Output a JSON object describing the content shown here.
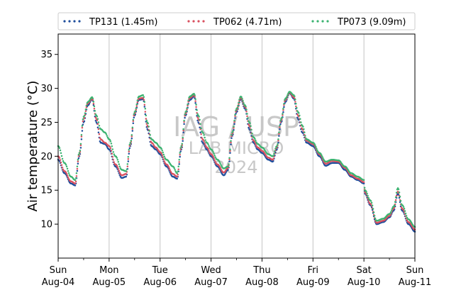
{
  "chart_data": {
    "type": "scatter",
    "ylabel": "Air temperature (°C)",
    "xlabel": "",
    "ylim": [
      5,
      38
    ],
    "y_ticks": [
      10,
      15,
      20,
      25,
      30,
      35
    ],
    "x_range": [
      "2024-08-04T00:00",
      "2024-08-11T00:00"
    ],
    "x_ticks": [
      {
        "date": "2024-08-04",
        "day": "Sun",
        "label": "Aug-04"
      },
      {
        "date": "2024-08-05",
        "day": "Mon",
        "label": "Aug-05"
      },
      {
        "date": "2024-08-06",
        "day": "Tue",
        "label": "Aug-06"
      },
      {
        "date": "2024-08-07",
        "day": "Wed",
        "label": "Aug-07"
      },
      {
        "date": "2024-08-08",
        "day": "Thu",
        "label": "Aug-08"
      },
      {
        "date": "2024-08-09",
        "day": "Fri",
        "label": "Aug-09"
      },
      {
        "date": "2024-08-10",
        "day": "Sat",
        "label": "Aug-10"
      },
      {
        "date": "2024-08-11",
        "day": "Sun",
        "label": "Aug-11"
      }
    ],
    "grid": "vertical-major",
    "legend_position": "top",
    "watermark": [
      "IAG / USP",
      "LAB MICRO",
      "2024"
    ],
    "series": [
      {
        "name": "TP131 (1.45m)",
        "color": "#1f4e9c",
        "points": [
          [
            "2024-08-04T00:00",
            19.5
          ],
          [
            "2024-08-04T03:00",
            17.5
          ],
          [
            "2024-08-04T06:00",
            16.0
          ],
          [
            "2024-08-04T08:00",
            15.7
          ],
          [
            "2024-08-04T10:00",
            20.0
          ],
          [
            "2024-08-04T12:00",
            25.0
          ],
          [
            "2024-08-04T14:00",
            27.5
          ],
          [
            "2024-08-04T16:00",
            28.4
          ],
          [
            "2024-08-04T18:00",
            25.0
          ],
          [
            "2024-08-04T20:00",
            22.0
          ],
          [
            "2024-08-04T22:00",
            21.8
          ],
          [
            "2024-08-05T00:00",
            21.0
          ],
          [
            "2024-08-05T03:00",
            18.5
          ],
          [
            "2024-08-05T06:00",
            16.8
          ],
          [
            "2024-08-05T08:00",
            17.0
          ],
          [
            "2024-08-05T10:00",
            21.5
          ],
          [
            "2024-08-05T12:00",
            26.0
          ],
          [
            "2024-08-05T14:00",
            28.3
          ],
          [
            "2024-08-05T16:00",
            28.4
          ],
          [
            "2024-08-05T18:00",
            24.0
          ],
          [
            "2024-08-05T20:00",
            21.5
          ],
          [
            "2024-08-05T22:00",
            21.0
          ],
          [
            "2024-08-06T00:00",
            20.3
          ],
          [
            "2024-08-06T03:00",
            18.5
          ],
          [
            "2024-08-06T06:00",
            17.0
          ],
          [
            "2024-08-06T08:00",
            16.7
          ],
          [
            "2024-08-06T10:00",
            21.0
          ],
          [
            "2024-08-06T12:00",
            26.0
          ],
          [
            "2024-08-06T14:00",
            28.3
          ],
          [
            "2024-08-06T16:00",
            28.8
          ],
          [
            "2024-08-06T18:00",
            25.0
          ],
          [
            "2024-08-06T20:00",
            22.0
          ],
          [
            "2024-08-06T22:00",
            21.0
          ],
          [
            "2024-08-07T00:00",
            20.0
          ],
          [
            "2024-08-07T03:00",
            18.5
          ],
          [
            "2024-08-07T06:00",
            17.2
          ],
          [
            "2024-08-07T08:00",
            18.0
          ],
          [
            "2024-08-07T10:00",
            23.0
          ],
          [
            "2024-08-07T12:00",
            26.5
          ],
          [
            "2024-08-07T14:00",
            28.4
          ],
          [
            "2024-08-07T16:00",
            27.0
          ],
          [
            "2024-08-07T18:00",
            24.0
          ],
          [
            "2024-08-07T20:00",
            22.0
          ],
          [
            "2024-08-07T22:00",
            21.0
          ],
          [
            "2024-08-08T00:00",
            20.5
          ],
          [
            "2024-08-08T03:00",
            19.5
          ],
          [
            "2024-08-08T05:00",
            19.2
          ],
          [
            "2024-08-08T07:00",
            21.0
          ],
          [
            "2024-08-08T09:00",
            25.0
          ],
          [
            "2024-08-08T11:00",
            28.0
          ],
          [
            "2024-08-08T13:00",
            29.3
          ],
          [
            "2024-08-08T15:00",
            28.5
          ],
          [
            "2024-08-08T17:00",
            25.5
          ],
          [
            "2024-08-08T19:00",
            23.5
          ],
          [
            "2024-08-08T21:00",
            22.0
          ],
          [
            "2024-08-09T00:00",
            21.5
          ],
          [
            "2024-08-09T03:00",
            20.0
          ],
          [
            "2024-08-09T06:00",
            18.6
          ],
          [
            "2024-08-09T09:00",
            19.0
          ],
          [
            "2024-08-09T12:00",
            19.0
          ],
          [
            "2024-08-09T15:00",
            18.0
          ],
          [
            "2024-08-09T18:00",
            17.0
          ],
          [
            "2024-08-09T21:00",
            16.5
          ],
          [
            "2024-08-10T00:00",
            16.0
          ],
          [
            "2024-08-10T00:30",
            14.5
          ],
          [
            "2024-08-10T03:00",
            12.8
          ],
          [
            "2024-08-10T06:00",
            10.0
          ],
          [
            "2024-08-10T09:00",
            10.3
          ],
          [
            "2024-08-10T12:00",
            11.0
          ],
          [
            "2024-08-10T14:00",
            12.0
          ],
          [
            "2024-08-10T16:00",
            14.5
          ],
          [
            "2024-08-10T18:00",
            12.0
          ],
          [
            "2024-08-10T21:00",
            10.0
          ],
          [
            "2024-08-11T00:00",
            8.9
          ]
        ]
      },
      {
        "name": "TP062 (4.71m)",
        "color": "#d9505f",
        "points": [
          [
            "2024-08-04T00:00",
            20.0
          ],
          [
            "2024-08-04T03:00",
            17.8
          ],
          [
            "2024-08-04T06:00",
            16.3
          ],
          [
            "2024-08-04T08:00",
            16.0
          ],
          [
            "2024-08-04T10:00",
            20.3
          ],
          [
            "2024-08-04T12:00",
            25.5
          ],
          [
            "2024-08-04T14:00",
            27.8
          ],
          [
            "2024-08-04T16:00",
            28.5
          ],
          [
            "2024-08-04T18:00",
            25.5
          ],
          [
            "2024-08-04T20:00",
            22.5
          ],
          [
            "2024-08-04T22:00",
            22.0
          ],
          [
            "2024-08-05T00:00",
            21.5
          ],
          [
            "2024-08-05T03:00",
            18.8
          ],
          [
            "2024-08-05T06:00",
            17.2
          ],
          [
            "2024-08-05T08:00",
            17.4
          ],
          [
            "2024-08-05T10:00",
            21.8
          ],
          [
            "2024-08-05T12:00",
            26.3
          ],
          [
            "2024-08-05T14:00",
            28.5
          ],
          [
            "2024-08-05T16:00",
            28.6
          ],
          [
            "2024-08-05T18:00",
            24.5
          ],
          [
            "2024-08-05T20:00",
            22.0
          ],
          [
            "2024-08-05T22:00",
            21.3
          ],
          [
            "2024-08-06T00:00",
            20.6
          ],
          [
            "2024-08-06T03:00",
            18.8
          ],
          [
            "2024-08-06T06:00",
            17.4
          ],
          [
            "2024-08-06T08:00",
            17.0
          ],
          [
            "2024-08-06T10:00",
            21.3
          ],
          [
            "2024-08-06T12:00",
            26.3
          ],
          [
            "2024-08-06T14:00",
            28.6
          ],
          [
            "2024-08-06T16:00",
            29.0
          ],
          [
            "2024-08-06T18:00",
            25.5
          ],
          [
            "2024-08-06T20:00",
            22.5
          ],
          [
            "2024-08-06T22:00",
            21.3
          ],
          [
            "2024-08-07T00:00",
            20.3
          ],
          [
            "2024-08-07T03:00",
            18.8
          ],
          [
            "2024-08-07T06:00",
            17.6
          ],
          [
            "2024-08-07T08:00",
            18.3
          ],
          [
            "2024-08-07T10:00",
            23.3
          ],
          [
            "2024-08-07T12:00",
            26.8
          ],
          [
            "2024-08-07T14:00",
            28.6
          ],
          [
            "2024-08-07T16:00",
            27.3
          ],
          [
            "2024-08-07T18:00",
            24.5
          ],
          [
            "2024-08-07T20:00",
            22.3
          ],
          [
            "2024-08-07T22:00",
            21.3
          ],
          [
            "2024-08-08T00:00",
            20.8
          ],
          [
            "2024-08-08T03:00",
            19.8
          ],
          [
            "2024-08-08T05:00",
            19.5
          ],
          [
            "2024-08-08T07:00",
            21.3
          ],
          [
            "2024-08-08T09:00",
            25.3
          ],
          [
            "2024-08-08T11:00",
            28.3
          ],
          [
            "2024-08-08T13:00",
            29.4
          ],
          [
            "2024-08-08T15:00",
            28.7
          ],
          [
            "2024-08-08T17:00",
            26.0
          ],
          [
            "2024-08-08T19:00",
            24.0
          ],
          [
            "2024-08-08T21:00",
            22.3
          ],
          [
            "2024-08-09T00:00",
            21.8
          ],
          [
            "2024-08-09T03:00",
            20.3
          ],
          [
            "2024-08-09T06:00",
            18.9
          ],
          [
            "2024-08-09T09:00",
            19.3
          ],
          [
            "2024-08-09T12:00",
            19.2
          ],
          [
            "2024-08-09T15:00",
            18.3
          ],
          [
            "2024-08-09T18:00",
            17.2
          ],
          [
            "2024-08-09T21:00",
            16.7
          ],
          [
            "2024-08-10T00:00",
            16.2
          ],
          [
            "2024-08-10T00:30",
            14.7
          ],
          [
            "2024-08-10T03:00",
            13.0
          ],
          [
            "2024-08-10T06:00",
            10.2
          ],
          [
            "2024-08-10T09:00",
            10.5
          ],
          [
            "2024-08-10T12:00",
            11.2
          ],
          [
            "2024-08-10T14:00",
            12.3
          ],
          [
            "2024-08-10T16:00",
            14.8
          ],
          [
            "2024-08-10T18:00",
            12.3
          ],
          [
            "2024-08-10T21:00",
            10.3
          ],
          [
            "2024-08-11T00:00",
            9.2
          ]
        ]
      },
      {
        "name": "TP073 (9.09m)",
        "color": "#3cb371",
        "points": [
          [
            "2024-08-04T00:00",
            21.5
          ],
          [
            "2024-08-04T03:00",
            19.0
          ],
          [
            "2024-08-04T06:00",
            17.0
          ],
          [
            "2024-08-04T08:00",
            16.5
          ],
          [
            "2024-08-04T10:00",
            20.5
          ],
          [
            "2024-08-04T12:00",
            25.8
          ],
          [
            "2024-08-04T14:00",
            28.0
          ],
          [
            "2024-08-04T16:00",
            28.7
          ],
          [
            "2024-08-04T18:00",
            26.0
          ],
          [
            "2024-08-04T20:00",
            24.0
          ],
          [
            "2024-08-04T22:00",
            23.5
          ],
          [
            "2024-08-05T00:00",
            22.5
          ],
          [
            "2024-08-05T03:00",
            20.0
          ],
          [
            "2024-08-05T06:00",
            18.0
          ],
          [
            "2024-08-05T08:00",
            17.8
          ],
          [
            "2024-08-05T10:00",
            22.0
          ],
          [
            "2024-08-05T12:00",
            26.5
          ],
          [
            "2024-08-05T14:00",
            28.8
          ],
          [
            "2024-08-05T16:00",
            29.0
          ],
          [
            "2024-08-05T18:00",
            25.0
          ],
          [
            "2024-08-05T20:00",
            22.5
          ],
          [
            "2024-08-05T22:00",
            22.0
          ],
          [
            "2024-08-06T00:00",
            21.3
          ],
          [
            "2024-08-06T03:00",
            19.5
          ],
          [
            "2024-08-06T06:00",
            18.5
          ],
          [
            "2024-08-06T08:00",
            17.5
          ],
          [
            "2024-08-06T10:00",
            21.5
          ],
          [
            "2024-08-06T12:00",
            26.5
          ],
          [
            "2024-08-06T14:00",
            28.8
          ],
          [
            "2024-08-06T16:00",
            29.2
          ],
          [
            "2024-08-06T18:00",
            26.0
          ],
          [
            "2024-08-06T20:00",
            23.5
          ],
          [
            "2024-08-06T22:00",
            22.0
          ],
          [
            "2024-08-07T00:00",
            21.0
          ],
          [
            "2024-08-07T03:00",
            19.5
          ],
          [
            "2024-08-07T06:00",
            18.2
          ],
          [
            "2024-08-07T08:00",
            18.5
          ],
          [
            "2024-08-07T10:00",
            23.5
          ],
          [
            "2024-08-07T12:00",
            27.0
          ],
          [
            "2024-08-07T14:00",
            28.8
          ],
          [
            "2024-08-07T16:00",
            27.5
          ],
          [
            "2024-08-07T18:00",
            25.0
          ],
          [
            "2024-08-07T20:00",
            22.8
          ],
          [
            "2024-08-07T22:00",
            21.8
          ],
          [
            "2024-08-08T00:00",
            21.3
          ],
          [
            "2024-08-08T03:00",
            20.3
          ],
          [
            "2024-08-08T05:00",
            20.0
          ],
          [
            "2024-08-08T07:00",
            21.5
          ],
          [
            "2024-08-08T09:00",
            25.5
          ],
          [
            "2024-08-08T11:00",
            28.5
          ],
          [
            "2024-08-08T13:00",
            29.5
          ],
          [
            "2024-08-08T15:00",
            29.0
          ],
          [
            "2024-08-08T17:00",
            26.5
          ],
          [
            "2024-08-08T19:00",
            24.5
          ],
          [
            "2024-08-08T21:00",
            22.5
          ],
          [
            "2024-08-09T00:00",
            22.0
          ],
          [
            "2024-08-09T03:00",
            20.5
          ],
          [
            "2024-08-09T06:00",
            19.2
          ],
          [
            "2024-08-09T09:00",
            19.5
          ],
          [
            "2024-08-09T12:00",
            19.4
          ],
          [
            "2024-08-09T15:00",
            18.5
          ],
          [
            "2024-08-09T18:00",
            17.5
          ],
          [
            "2024-08-09T21:00",
            17.0
          ],
          [
            "2024-08-10T00:00",
            16.5
          ],
          [
            "2024-08-10T00:30",
            15.0
          ],
          [
            "2024-08-10T03:00",
            13.5
          ],
          [
            "2024-08-10T06:00",
            10.5
          ],
          [
            "2024-08-10T09:00",
            10.8
          ],
          [
            "2024-08-10T12:00",
            11.5
          ],
          [
            "2024-08-10T14:00",
            12.6
          ],
          [
            "2024-08-10T16:00",
            15.3
          ],
          [
            "2024-08-10T18:00",
            12.8
          ],
          [
            "2024-08-10T21:00",
            10.7
          ],
          [
            "2024-08-11T00:00",
            9.6
          ]
        ]
      }
    ]
  }
}
